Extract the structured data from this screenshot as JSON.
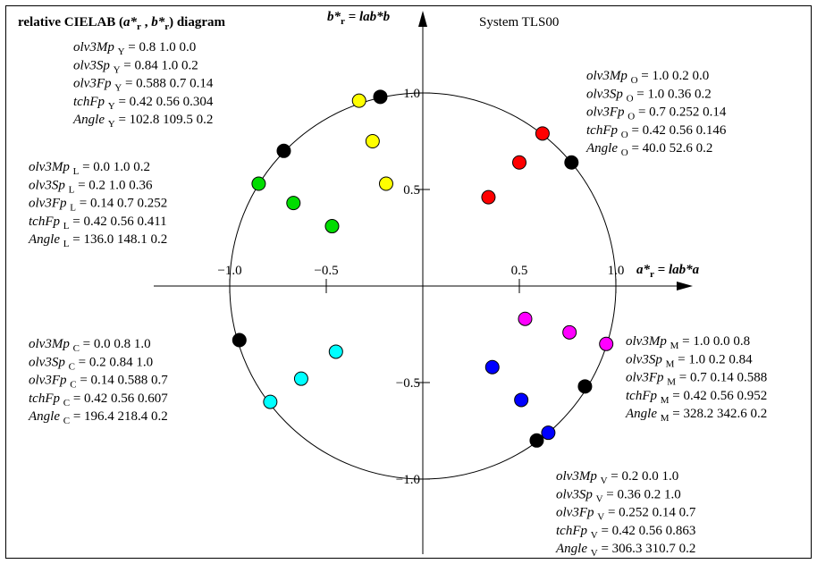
{
  "chart_data": {
    "type": "scatter",
    "title": "relative CIELAB (",
    "title_parts": {
      "pre": "relative CIELAB (",
      "a": "a*",
      "r1": "r",
      "comma": " , ",
      "b": "b*",
      "r2": "r",
      "post": ") diagram"
    },
    "system_label": "System TLS00",
    "x_axis": {
      "label_main": "a*",
      "label_sub": "r",
      "label_rest": " = lab*a",
      "range": [
        -1.0,
        1.0
      ],
      "ticks": [
        "−1.0",
        "−0.5",
        "0.5",
        "1.0"
      ],
      "tick_values": [
        -1.0,
        -0.5,
        0.5,
        1.0
      ]
    },
    "y_axis": {
      "label_main": "b*",
      "label_sub": "r",
      "label_rest": " = lab*b",
      "range": [
        -1.0,
        1.0
      ],
      "ticks": [
        "1.0",
        "0.5",
        "−0.5",
        "−1.0"
      ],
      "tick_values": [
        1.0,
        0.5,
        -0.5,
        -1.0
      ]
    },
    "unit_circle_radius": 1.0,
    "grid": false,
    "legend": "none",
    "colors": {
      "Y": "#ffff00",
      "O": "#ff0000",
      "L": "#00dd00",
      "C": "#00ffff",
      "M": "#ff00ff",
      "V": "#0000ff",
      "black": "#000000"
    },
    "series": [
      {
        "hue": "O",
        "color": "#ff0000",
        "points": [
          [
            0.62,
            0.79
          ],
          [
            0.5,
            0.64
          ],
          [
            0.34,
            0.46
          ]
        ]
      },
      {
        "hue": "Y",
        "color": "#ffff00",
        "points": [
          [
            -0.33,
            0.96
          ],
          [
            -0.26,
            0.75
          ],
          [
            -0.19,
            0.53
          ]
        ]
      },
      {
        "hue": "L",
        "color": "#00dd00",
        "points": [
          [
            -0.85,
            0.53
          ],
          [
            -0.67,
            0.43
          ],
          [
            -0.47,
            0.31
          ]
        ]
      },
      {
        "hue": "C",
        "color": "#00ffff",
        "points": [
          [
            -0.79,
            -0.6
          ],
          [
            -0.63,
            -0.48
          ],
          [
            -0.45,
            -0.34
          ]
        ]
      },
      {
        "hue": "M",
        "color": "#ff00ff",
        "points": [
          [
            0.95,
            -0.3
          ],
          [
            0.76,
            -0.24
          ],
          [
            0.53,
            -0.17
          ]
        ]
      },
      {
        "hue": "V",
        "color": "#0000ff",
        "points": [
          [
            0.65,
            -0.76
          ],
          [
            0.51,
            -0.59
          ],
          [
            0.36,
            -0.42
          ]
        ]
      },
      {
        "hue": "K",
        "color": "#000000",
        "points": [
          [
            -0.22,
            0.98
          ],
          [
            -0.72,
            0.7
          ],
          [
            0.77,
            0.64
          ],
          [
            -0.95,
            -0.28
          ],
          [
            0.84,
            -0.52
          ],
          [
            0.59,
            -0.8
          ]
        ]
      }
    ],
    "annotations": [
      {
        "group": "Y",
        "lines": [
          {
            "name": "olv3Mp",
            "sub": "Y",
            "value": " = 0.8  1.0  0.0"
          },
          {
            "name": "olv3Sp",
            "sub": "Y",
            "value": " = 0.84  1.0  0.2"
          },
          {
            "name": "olv3Fp",
            "sub": "Y",
            "value": " = 0.588  0.7  0.14"
          },
          {
            "name": "tchFp",
            "sub": "Y",
            "value": " = 0.42  0.56  0.304"
          },
          {
            "name": "Angle",
            "sub": "Y",
            "value": " = 102.8  109.5  0.2"
          }
        ]
      },
      {
        "group": "O",
        "lines": [
          {
            "name": "olv3Mp",
            "sub": "O",
            "value": " = 1.0  0.2  0.0"
          },
          {
            "name": "olv3Sp",
            "sub": "O",
            "value": " = 1.0  0.36  0.2"
          },
          {
            "name": "olv3Fp",
            "sub": "O",
            "value": " = 0.7  0.252  0.14"
          },
          {
            "name": "tchFp",
            "sub": "O",
            "value": " = 0.42  0.56  0.146"
          },
          {
            "name": "Angle",
            "sub": "O",
            "value": " = 40.0  52.6  0.2"
          }
        ]
      },
      {
        "group": "L",
        "lines": [
          {
            "name": "olv3Mp",
            "sub": "L",
            "value": " = 0.0  1.0  0.2"
          },
          {
            "name": "olv3Sp",
            "sub": "L",
            "value": " = 0.2  1.0  0.36"
          },
          {
            "name": "olv3Fp",
            "sub": "L",
            "value": " = 0.14  0.7  0.252"
          },
          {
            "name": "tchFp",
            "sub": "L",
            "value": " = 0.42  0.56  0.411"
          },
          {
            "name": "Angle",
            "sub": "L",
            "value": " = 136.0  148.1  0.2"
          }
        ]
      },
      {
        "group": "C",
        "lines": [
          {
            "name": "olv3Mp",
            "sub": "C",
            "value": " = 0.0  0.8  1.0"
          },
          {
            "name": "olv3Sp",
            "sub": "C",
            "value": " = 0.2  0.84  1.0"
          },
          {
            "name": "olv3Fp",
            "sub": "C",
            "value": " = 0.14  0.588  0.7"
          },
          {
            "name": "tchFp",
            "sub": "C",
            "value": " = 0.42  0.56  0.607"
          },
          {
            "name": "Angle",
            "sub": "C",
            "value": " = 196.4  218.4  0.2"
          }
        ]
      },
      {
        "group": "M",
        "lines": [
          {
            "name": "olv3Mp",
            "sub": "M",
            "value": " = 1.0  0.0  0.8"
          },
          {
            "name": "olv3Sp",
            "sub": "M",
            "value": " = 1.0  0.2  0.84"
          },
          {
            "name": "olv3Fp",
            "sub": "M",
            "value": " = 0.7  0.14  0.588"
          },
          {
            "name": "tchFp",
            "sub": "M",
            "value": " = 0.42  0.56  0.952"
          },
          {
            "name": "Angle",
            "sub": "M",
            "value": " = 328.2  342.6  0.2"
          }
        ]
      },
      {
        "group": "V",
        "lines": [
          {
            "name": "olv3Mp",
            "sub": "V",
            "value": " = 0.2  0.0  1.0"
          },
          {
            "name": "olv3Sp",
            "sub": "V",
            "value": " = 0.36  0.2  1.0"
          },
          {
            "name": "olv3Fp",
            "sub": "V",
            "value": " = 0.252  0.14  0.7"
          },
          {
            "name": "tchFp",
            "sub": "V",
            "value": " = 0.42  0.56  0.863"
          },
          {
            "name": "Angle",
            "sub": "V",
            "value": " = 306.3  310.7  0.2"
          }
        ]
      }
    ]
  }
}
